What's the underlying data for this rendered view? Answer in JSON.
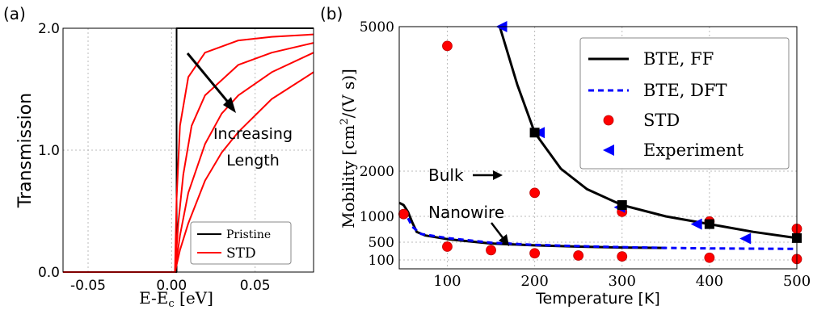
{
  "chart_data": [
    {
      "panel_label": "(a)",
      "type": "line",
      "xlabel": "E-E",
      "xlabel_sub": "c",
      "xlabel_unit": " [eV]",
      "ylabel": "Transmission",
      "xlim": [
        -0.065,
        0.085
      ],
      "ylim": [
        0.0,
        2.0
      ],
      "xticks": [
        -0.05,
        0.0,
        0.05
      ],
      "xtick_labels": [
        "-0.05",
        "0.00",
        "0.05"
      ],
      "yticks": [
        0.0,
        1.0,
        2.0
      ],
      "ytick_labels": [
        "0.0",
        "1.0",
        "2.0"
      ],
      "grid": true,
      "legend": {
        "position": "bottom-right",
        "entries": [
          "Pristine",
          "STD"
        ]
      },
      "annotation": {
        "lines": [
          "Increasing",
          "Length"
        ]
      },
      "series": [
        {
          "name": "Pristine",
          "color": "#000000",
          "x": [
            -0.065,
            0.003,
            0.003,
            0.085
          ],
          "y": [
            0.0,
            0.0,
            2.0,
            2.0
          ]
        },
        {
          "name": "STD",
          "color": "#ff0000",
          "x": [
            -0.065,
            0.002,
            0.003,
            0.005,
            0.01,
            0.02,
            0.04,
            0.06,
            0.085
          ],
          "y": [
            0.0,
            0.0,
            0.6,
            1.2,
            1.6,
            1.8,
            1.9,
            1.93,
            1.95
          ]
        },
        {
          "name": "",
          "color": "#ff0000",
          "x": [
            -0.065,
            0.002,
            0.004,
            0.007,
            0.012,
            0.02,
            0.04,
            0.06,
            0.085
          ],
          "y": [
            0.0,
            0.0,
            0.4,
            0.8,
            1.2,
            1.45,
            1.7,
            1.8,
            1.88
          ]
        },
        {
          "name": "",
          "color": "#ff0000",
          "x": [
            -0.065,
            0.002,
            0.005,
            0.01,
            0.02,
            0.03,
            0.04,
            0.06,
            0.085
          ],
          "y": [
            0.0,
            0.0,
            0.3,
            0.65,
            1.05,
            1.3,
            1.45,
            1.64,
            1.8
          ]
        },
        {
          "name": "",
          "color": "#ff0000",
          "x": [
            -0.065,
            0.002,
            0.005,
            0.01,
            0.02,
            0.03,
            0.04,
            0.06,
            0.085
          ],
          "y": [
            0.0,
            0.0,
            0.18,
            0.4,
            0.75,
            0.98,
            1.15,
            1.42,
            1.64
          ]
        }
      ]
    },
    {
      "panel_label": "(b)",
      "type": "line",
      "xlabel": "Temperature [K]",
      "ylabel": "Mobility [cm",
      "ylabel_sup": "2",
      "ylabel_tail": "/(V s)]",
      "xlim": [
        45,
        500
      ],
      "ylim": [
        0,
        5000
      ],
      "xticks": [
        100,
        200,
        300,
        400,
        500
      ],
      "xtick_labels": [
        "100",
        "200",
        "300",
        "400",
        "500"
      ],
      "yticks": [
        100,
        500,
        1000,
        2000,
        5000
      ],
      "ytick_labels": [
        "100",
        "500",
        "1000",
        "2000",
        "5000"
      ],
      "grid": true,
      "legend": {
        "position": "top-right",
        "entries": [
          "BTE, FF",
          "BTE, DFT",
          "STD",
          "Experiment"
        ]
      },
      "annotations": [
        "Bulk",
        "Nanowire"
      ],
      "series": [
        {
          "name": "BTE, FF",
          "style": "solid",
          "color": "#000000",
          "x": [
            160,
            180,
            200,
            230,
            260,
            300,
            350,
            400,
            450,
            500
          ],
          "y": [
            5000,
            3800,
            2800,
            2050,
            1600,
            1250,
            1000,
            850,
            700,
            580
          ]
        },
        {
          "name": "BTE, FF",
          "style": "solid",
          "color": "#000000",
          "x": [
            45,
            50,
            55,
            60,
            65,
            75,
            100,
            150,
            200,
            250,
            300,
            350
          ],
          "y": [
            1300,
            1250,
            1100,
            880,
            700,
            630,
            560,
            470,
            430,
            400,
            380,
            370
          ]
        },
        {
          "name": "BTE, DFT",
          "style": "dashed",
          "color": "#0000ff",
          "x": [
            50,
            60,
            70,
            100,
            150,
            200,
            250,
            300,
            350,
            400,
            450,
            500
          ],
          "y": [
            1150,
            800,
            660,
            580,
            490,
            440,
            410,
            390,
            370,
            360,
            355,
            350
          ]
        },
        {
          "name": "STD",
          "style": "marker-circle",
          "color": "#ff0000",
          "x": [
            50,
            100,
            150,
            200,
            250,
            300,
            400,
            500,
            100,
            200,
            300,
            400,
            500
          ],
          "y": [
            1050,
            400,
            320,
            250,
            200,
            180,
            150,
            120,
            4600,
            1520,
            1100,
            900,
            760
          ]
        },
        {
          "name": "Experiment",
          "style": "marker-triangle",
          "color": "#0000ff",
          "x": [
            162,
            205,
            297,
            385,
            441
          ],
          "y": [
            5000,
            2800,
            1200,
            850,
            570
          ]
        },
        {
          "name": "",
          "style": "marker-square",
          "color": "#000000",
          "x": [
            200,
            300,
            400,
            500
          ],
          "y": [
            2800,
            1250,
            850,
            580
          ]
        }
      ]
    }
  ]
}
